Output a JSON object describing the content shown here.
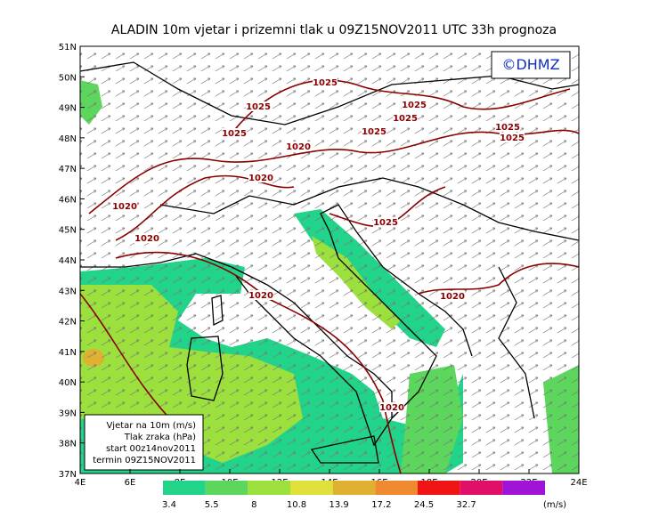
{
  "title": "ALADIN 10m vjetar i prizemni tlak u 09Z15NOV2011 UTC 33h prognoza",
  "logo": "©DHMZ",
  "lat_labels": [
    "51N",
    "50N",
    "49N",
    "48N",
    "47N",
    "46N",
    "45N",
    "44N",
    "43N",
    "42N",
    "41N",
    "40N",
    "39N",
    "38N",
    "37N"
  ],
  "lon_labels": [
    "4E",
    "6E",
    "8E",
    "10E",
    "12E",
    "14E",
    "16E",
    "18E",
    "20E",
    "22E",
    "24E"
  ],
  "isobar_labels": [
    "1025",
    "1025",
    "1025",
    "1025",
    "1025",
    "1025",
    "1025",
    "1025",
    "1020",
    "1020",
    "1020",
    "1020",
    "1025",
    "1020",
    "1020",
    "1020"
  ],
  "legend_box": [
    "Vjetar na 10m (m/s)",
    "Tlak zraka (hPa)",
    "start 00z14nov2011",
    "termin 09Z15NOV2011"
  ],
  "colorbar": {
    "labels": [
      "3.4",
      "5.5",
      "8",
      "10.8",
      "13.9",
      "17.2",
      "24.5",
      "32.7"
    ],
    "unit": "(m/s)",
    "colors": [
      "#22d38a",
      "#5cd65c",
      "#9be03c",
      "#e0e03a",
      "#e0b030",
      "#f08a30",
      "#f01414",
      "#e0106a",
      "#a014d8"
    ]
  }
}
